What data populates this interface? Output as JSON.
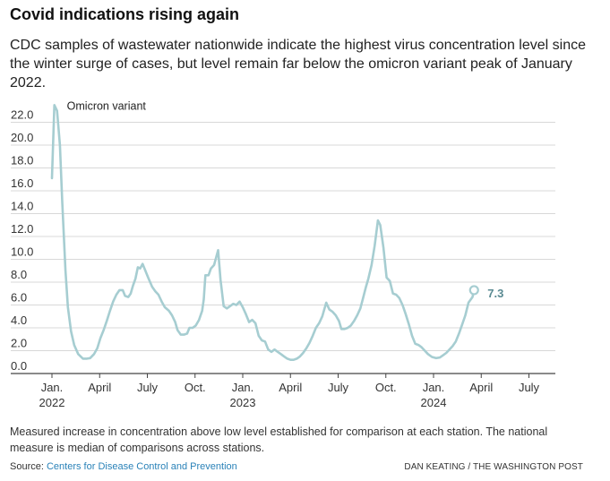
{
  "header": {
    "title": "Covid indications rising again",
    "subtitle": "CDC samples of wastewater nationwide indicate the highest virus concentration level since the winter surge of cases, but level remain far below the omicron variant peak of January 2022."
  },
  "footer": {
    "note": "Measured increase in concentration above low level established for comparison at each station. The national measure is median of comparisons across stations.",
    "source_label": "Source:",
    "source_name": "Centers for Disease Control and Prevention",
    "credit": "DAN KEATING / THE WASHINGTON POST"
  },
  "colors": {
    "line": "#a6cdd1",
    "end_label": "#5a8a92",
    "grid": "#d8d8d8",
    "axis": "#444444",
    "link": "#2a82b8"
  },
  "chart_data": {
    "type": "line",
    "title": "Covid indications rising again",
    "xlabel": "",
    "ylabel": "",
    "ylim": [
      0,
      22
    ],
    "yticks": [
      "0.0",
      "2.0",
      "4.0",
      "6.0",
      "8.0",
      "10.0",
      "12.0",
      "14.0",
      "16.0",
      "18.0",
      "20.0",
      "22.0"
    ],
    "xlim": [
      0,
      31.5
    ],
    "xticks": [
      {
        "x": 0,
        "label": "Jan.",
        "sub": "2022"
      },
      {
        "x": 3,
        "label": "April",
        "sub": ""
      },
      {
        "x": 6,
        "label": "July",
        "sub": ""
      },
      {
        "x": 9,
        "label": "Oct.",
        "sub": ""
      },
      {
        "x": 12,
        "label": "Jan.",
        "sub": "2023"
      },
      {
        "x": 15,
        "label": "April",
        "sub": ""
      },
      {
        "x": 18,
        "label": "July",
        "sub": ""
      },
      {
        "x": 21,
        "label": "Oct.",
        "sub": ""
      },
      {
        "x": 24,
        "label": "Jan.",
        "sub": "2024"
      },
      {
        "x": 27,
        "label": "April",
        "sub": ""
      },
      {
        "x": 30,
        "label": "July",
        "sub": ""
      }
    ],
    "grid": true,
    "annotations": [
      {
        "text": "Omicron variant"
      }
    ],
    "end_label": "7.3",
    "series": [
      {
        "name": "",
        "points": [
          [
            0.0,
            17.1
          ],
          [
            0.15,
            23.5
          ],
          [
            0.32,
            23.0
          ],
          [
            0.5,
            20.0
          ],
          [
            0.65,
            15.0
          ],
          [
            0.85,
            9.0
          ],
          [
            1.0,
            5.8
          ],
          [
            1.2,
            3.7
          ],
          [
            1.4,
            2.5
          ],
          [
            1.65,
            1.7
          ],
          [
            1.95,
            1.3
          ],
          [
            2.2,
            1.3
          ],
          [
            2.4,
            1.35
          ],
          [
            2.65,
            1.7
          ],
          [
            2.85,
            2.2
          ],
          [
            3.05,
            3.1
          ],
          [
            3.25,
            3.8
          ],
          [
            3.45,
            4.6
          ],
          [
            3.65,
            5.5
          ],
          [
            3.85,
            6.3
          ],
          [
            4.05,
            6.9
          ],
          [
            4.25,
            7.3
          ],
          [
            4.45,
            7.3
          ],
          [
            4.6,
            6.8
          ],
          [
            4.8,
            6.7
          ],
          [
            4.95,
            7.0
          ],
          [
            5.1,
            7.7
          ],
          [
            5.25,
            8.3
          ],
          [
            5.4,
            9.3
          ],
          [
            5.55,
            9.2
          ],
          [
            5.7,
            9.6
          ],
          [
            5.85,
            9.1
          ],
          [
            6.05,
            8.4
          ],
          [
            6.3,
            7.6
          ],
          [
            6.5,
            7.2
          ],
          [
            6.7,
            6.9
          ],
          [
            6.9,
            6.3
          ],
          [
            7.1,
            5.8
          ],
          [
            7.35,
            5.5
          ],
          [
            7.55,
            5.1
          ],
          [
            7.75,
            4.5
          ],
          [
            7.9,
            3.8
          ],
          [
            8.1,
            3.4
          ],
          [
            8.3,
            3.4
          ],
          [
            8.5,
            3.5
          ],
          [
            8.65,
            4.0
          ],
          [
            8.85,
            4.0
          ],
          [
            9.05,
            4.2
          ],
          [
            9.25,
            4.7
          ],
          [
            9.45,
            5.5
          ],
          [
            9.55,
            6.5
          ],
          [
            9.65,
            8.6
          ],
          [
            9.85,
            8.6
          ],
          [
            10.0,
            9.2
          ],
          [
            10.2,
            9.5
          ],
          [
            10.45,
            10.8
          ],
          [
            10.6,
            8.2
          ],
          [
            10.8,
            5.9
          ],
          [
            11.0,
            5.7
          ],
          [
            11.2,
            5.9
          ],
          [
            11.4,
            6.1
          ],
          [
            11.6,
            6.0
          ],
          [
            11.8,
            6.3
          ],
          [
            12.0,
            5.8
          ],
          [
            12.2,
            5.2
          ],
          [
            12.4,
            4.5
          ],
          [
            12.6,
            4.7
          ],
          [
            12.8,
            4.4
          ],
          [
            13.0,
            3.3
          ],
          [
            13.2,
            2.9
          ],
          [
            13.4,
            2.8
          ],
          [
            13.6,
            2.1
          ],
          [
            13.8,
            1.9
          ],
          [
            14.0,
            2.1
          ],
          [
            14.2,
            1.9
          ],
          [
            14.4,
            1.7
          ],
          [
            14.6,
            1.5
          ],
          [
            14.8,
            1.3
          ],
          [
            15.0,
            1.2
          ],
          [
            15.2,
            1.2
          ],
          [
            15.4,
            1.3
          ],
          [
            15.6,
            1.5
          ],
          [
            15.8,
            1.8
          ],
          [
            16.0,
            2.2
          ],
          [
            16.2,
            2.7
          ],
          [
            16.4,
            3.3
          ],
          [
            16.6,
            4.0
          ],
          [
            16.8,
            4.4
          ],
          [
            17.0,
            5.0
          ],
          [
            17.25,
            6.2
          ],
          [
            17.45,
            5.6
          ],
          [
            17.65,
            5.4
          ],
          [
            17.85,
            5.1
          ],
          [
            18.05,
            4.6
          ],
          [
            18.2,
            3.9
          ],
          [
            18.4,
            3.9
          ],
          [
            18.6,
            4.0
          ],
          [
            18.8,
            4.2
          ],
          [
            19.0,
            4.6
          ],
          [
            19.2,
            5.1
          ],
          [
            19.4,
            5.7
          ],
          [
            19.55,
            6.5
          ],
          [
            19.75,
            7.6
          ],
          [
            19.9,
            8.3
          ],
          [
            20.1,
            9.5
          ],
          [
            20.3,
            11.2
          ],
          [
            20.5,
            13.4
          ],
          [
            20.65,
            13.0
          ],
          [
            20.85,
            11.0
          ],
          [
            21.05,
            8.4
          ],
          [
            21.25,
            8.1
          ],
          [
            21.45,
            7.0
          ],
          [
            21.65,
            6.9
          ],
          [
            21.85,
            6.6
          ],
          [
            22.05,
            6.0
          ],
          [
            22.25,
            5.2
          ],
          [
            22.45,
            4.3
          ],
          [
            22.65,
            3.3
          ],
          [
            22.85,
            2.6
          ],
          [
            23.05,
            2.5
          ],
          [
            23.25,
            2.3
          ],
          [
            23.45,
            2.0
          ],
          [
            23.65,
            1.7
          ],
          [
            23.9,
            1.45
          ],
          [
            24.15,
            1.35
          ],
          [
            24.4,
            1.4
          ],
          [
            24.6,
            1.6
          ],
          [
            24.8,
            1.8
          ],
          [
            25.0,
            2.1
          ],
          [
            25.2,
            2.4
          ],
          [
            25.4,
            2.8
          ],
          [
            25.6,
            3.5
          ],
          [
            25.8,
            4.3
          ],
          [
            26.0,
            5.1
          ],
          [
            26.2,
            6.2
          ],
          [
            26.45,
            6.7
          ],
          [
            26.55,
            7.3
          ]
        ]
      }
    ]
  }
}
